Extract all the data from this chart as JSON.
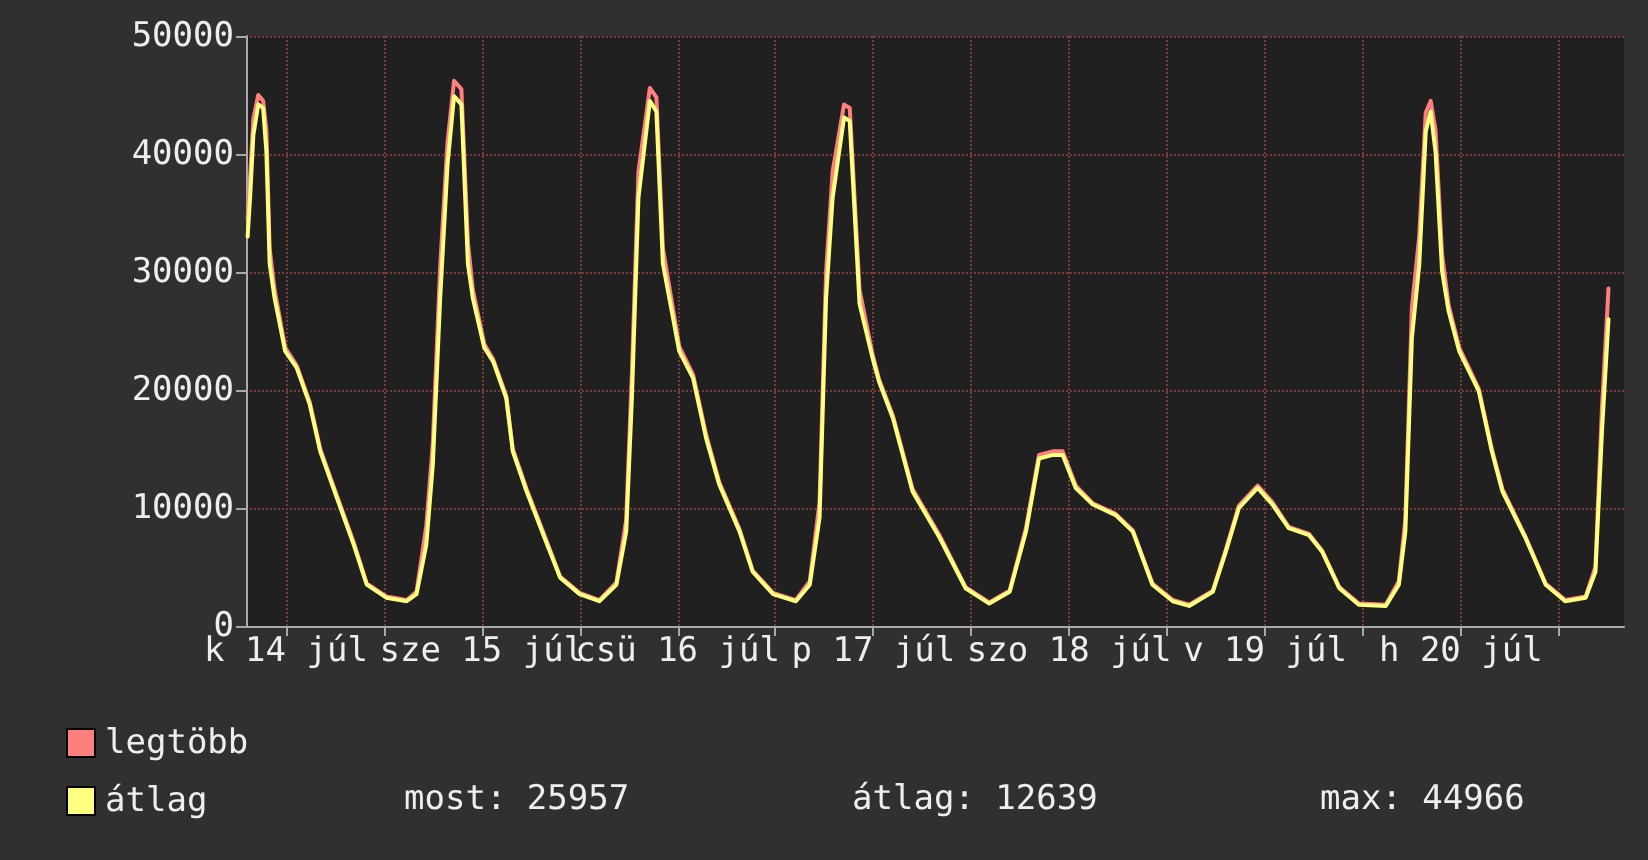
{
  "chart_data": {
    "type": "line",
    "x": [
      "--07-14T07:18",
      "--07-14T07:36",
      "--07-14T08:00",
      "--07-14T08:36",
      "--07-14T09:12",
      "--07-14T09:36",
      "--07-14T10:00",
      "--07-14T10:36",
      "--07-14T11:54",
      "--07-14T13:18",
      "--07-14T14:54",
      "--07-14T16:12",
      "--07-14T17:48",
      "--07-14T20:18",
      "--07-14T21:54",
      "--07-15T00:18",
      "--07-15T02:48",
      "--07-15T04:00",
      "--07-15T05:12",
      "--07-15T06:00",
      "--07-15T06:54",
      "--07-15T07:48",
      "--07-15T08:36",
      "--07-15T09:30",
      "--07-15T10:18",
      "--07-15T10:54",
      "--07-15T12:18",
      "--07-15T13:24",
      "--07-15T15:00",
      "--07-15T15:48",
      "--07-15T17:30",
      "--07-15T19:54",
      "--07-15T21:36",
      "--07-16T00:00",
      "--07-16T02:24",
      "--07-16T04:30",
      "--07-16T05:42",
      "--07-16T06:24",
      "--07-16T07:12",
      "--07-16T08:36",
      "--07-16T09:24",
      "--07-16T10:12",
      "--07-16T12:12",
      "--07-16T13:54",
      "--07-16T15:30",
      "--07-16T17:06",
      "--07-16T19:36",
      "--07-16T21:12",
      "--07-16T23:42",
      "--07-17T02:30",
      "--07-17T04:12",
      "--07-17T05:24",
      "--07-17T06:12",
      "--07-17T07:00",
      "--07-17T08:24",
      "--07-17T09:06",
      "--07-17T10:18",
      "--07-17T11:54",
      "--07-17T12:42",
      "--07-17T14:24",
      "--07-17T16:48",
      "--07-17T20:06",
      "--07-17T23:18",
      "--07-18T02:12",
      "--07-18T04:42",
      "--07-18T06:42",
      "--07-18T08:18",
      "--07-18T10:00",
      "--07-18T11:12",
      "--07-18T12:48",
      "--07-18T14:54",
      "--07-18T17:42",
      "--07-18T19:48",
      "--07-18T22:12",
      "--07-19T00:42",
      "--07-19T02:42",
      "--07-19T05:36",
      "--07-19T07:12",
      "--07-19T08:48",
      "--07-19T11:06",
      "--07-19T12:54",
      "--07-19T14:54",
      "--07-19T17:24",
      "--07-19T19:00",
      "--07-19T21:06",
      "--07-19T23:30",
      "--07-20T02:48",
      "--07-20T04:24",
      "--07-20T05:12",
      "--07-20T06:00",
      "--07-20T06:54",
      "--07-20T07:42",
      "--07-20T08:18",
      "--07-20T08:54",
      "--07-20T09:42",
      "--07-20T10:30",
      "--07-20T11:48",
      "--07-20T14:12",
      "--07-20T15:48",
      "--07-20T17:06",
      "--07-20T19:54",
      "--07-20T22:24",
      "--07-21T00:48",
      "--07-21T03:18",
      "--07-21T04:30",
      "--07-21T05:18",
      "--07-21T06:06"
    ],
    "series": [
      {
        "name": "legtöbb",
        "color": "#ff7f7f",
        "values": [
          34500,
          38000,
          43000,
          45000,
          44500,
          42000,
          32000,
          28500,
          23600,
          22100,
          19000,
          15000,
          11900,
          7100,
          3600,
          2500,
          2200,
          2900,
          8500,
          15500,
          30500,
          41000,
          46200,
          45500,
          32500,
          28500,
          23900,
          22600,
          19500,
          15000,
          11600,
          7300,
          4200,
          2800,
          2200,
          3700,
          9000,
          21500,
          38500,
          45600,
          44800,
          32000,
          23700,
          21300,
          16200,
          12200,
          8200,
          4700,
          2800,
          2200,
          3800,
          10500,
          30000,
          38500,
          44200,
          43900,
          28500,
          23000,
          20900,
          17800,
          11600,
          7700,
          3300,
          2000,
          3000,
          8300,
          14500,
          14800,
          14800,
          11900,
          10400,
          9500,
          8100,
          3600,
          2200,
          1800,
          3000,
          6500,
          10200,
          11900,
          10500,
          8400,
          7800,
          6400,
          3300,
          1900,
          1800,
          3800,
          9000,
          27000,
          33000,
          43500,
          44500,
          42000,
          31500,
          27200,
          23600,
          20100,
          15000,
          11600,
          7600,
          3600,
          2200,
          2500,
          5000,
          18500,
          28600
        ]
      },
      {
        "name": "átlag",
        "color": "#ffff80",
        "values": [
          33000,
          36300,
          41600,
          44200,
          43900,
          40200,
          30700,
          27800,
          23300,
          21900,
          18800,
          14800,
          11700,
          6900,
          3500,
          2400,
          2100,
          2700,
          6900,
          13700,
          27800,
          39100,
          44900,
          44200,
          30700,
          27800,
          23600,
          22400,
          19300,
          14800,
          11400,
          7100,
          4100,
          2700,
          2100,
          3500,
          8000,
          19300,
          36300,
          44500,
          43600,
          30700,
          23300,
          21000,
          15900,
          12000,
          8000,
          4600,
          2700,
          2100,
          3500,
          9200,
          27800,
          36300,
          43100,
          42800,
          27300,
          22700,
          20700,
          17600,
          11400,
          7500,
          3200,
          1900,
          2900,
          8000,
          14200,
          14500,
          14500,
          11700,
          10300,
          9400,
          8000,
          3500,
          2100,
          1700,
          2900,
          6300,
          10000,
          11700,
          10300,
          8300,
          7700,
          6300,
          3200,
          1800,
          1700,
          3500,
          8000,
          24400,
          30600,
          41900,
          43600,
          40200,
          30100,
          26700,
          23300,
          19900,
          14800,
          11400,
          7500,
          3500,
          2100,
          2400,
          4600,
          16500,
          26000
        ]
      }
    ],
    "xlim": [
      "--07-14T07:06",
      "--07-21T08:00"
    ],
    "xticks": [
      {
        "value": "--07-14T12:00",
        "label": "k 14 júl"
      },
      {
        "value": "--07-15T00:00",
        "label": null
      },
      {
        "value": "--07-15T12:00",
        "label": "sze 15 júl"
      },
      {
        "value": "--07-16T00:00",
        "label": null
      },
      {
        "value": "--07-16T12:00",
        "label": "csü 16 júl"
      },
      {
        "value": "--07-17T00:00",
        "label": null
      },
      {
        "value": "--07-17T12:00",
        "label": "p 17 júl"
      },
      {
        "value": "--07-18T00:00",
        "label": null
      },
      {
        "value": "--07-18T12:00",
        "label": "szo 18 júl"
      },
      {
        "value": "--07-19T00:00",
        "label": null
      },
      {
        "value": "--07-19T12:00",
        "label": "v 19 júl"
      },
      {
        "value": "--07-20T00:00",
        "label": null
      },
      {
        "value": "--07-20T12:00",
        "label": "h 20 júl"
      },
      {
        "value": "--07-21T00:00",
        "label": null
      }
    ],
    "ylim": [
      0,
      50000
    ],
    "yticks": [
      0,
      10000,
      20000,
      30000,
      40000,
      50000
    ],
    "grid": true,
    "legend": "bottom left",
    "marker": "none",
    "line_style": "solid",
    "annotations": [
      "most: 25957",
      "átlag: 12639",
      "max: 44966"
    ]
  }
}
